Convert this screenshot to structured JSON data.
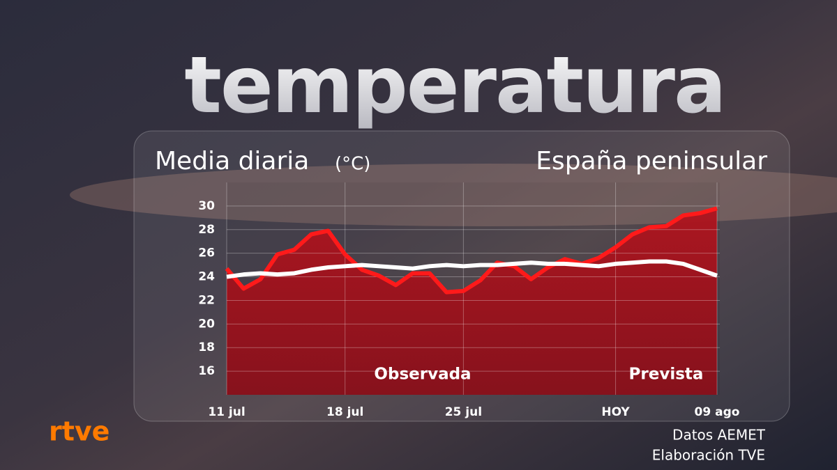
{
  "logo": "rtve",
  "source": [
    "Datos AEMET",
    "Elaboración TVE"
  ],
  "chart_data": {
    "type": "line",
    "title": "temperatura",
    "subtitle": "Media diaria",
    "unit": "(°C)",
    "region": "España peninsular",
    "annotations": [
      "Observada",
      "Prevista"
    ],
    "categories": [
      "11 jul",
      null,
      null,
      null,
      null,
      null,
      null,
      "18 jul",
      null,
      null,
      null,
      null,
      null,
      null,
      "25 jul",
      null,
      null,
      null,
      null,
      null,
      null,
      null,
      null,
      "HOY",
      null,
      null,
      null,
      null,
      null,
      "09 ago"
    ],
    "series": [
      {
        "color": "#ff1a1a",
        "values": [
          24.7,
          23.0,
          23.8,
          25.9,
          26.3,
          27.6,
          27.9,
          25.9,
          24.6,
          24.1,
          23.3,
          24.3,
          24.3,
          22.7,
          22.8,
          23.7,
          25.2,
          24.9,
          23.8,
          24.8,
          25.5,
          25.1,
          25.6,
          26.5,
          27.6,
          28.2,
          28.3,
          29.2,
          29.4,
          29.8
        ]
      },
      {
        "color": "#ffffff",
        "values": [
          24.0,
          24.2,
          24.3,
          24.2,
          24.3,
          24.6,
          24.8,
          24.9,
          25.0,
          24.9,
          24.8,
          24.7,
          24.9,
          25.0,
          24.9,
          25.0,
          25.0,
          25.1,
          25.2,
          25.1,
          25.1,
          25.0,
          24.9,
          25.1,
          25.2,
          25.3,
          25.3,
          25.1,
          24.6,
          24.1
        ]
      }
    ],
    "ylim": [
      14,
      32
    ],
    "yticks": [
      16,
      18,
      20,
      22,
      24,
      26,
      28,
      30
    ],
    "grid": true
  }
}
